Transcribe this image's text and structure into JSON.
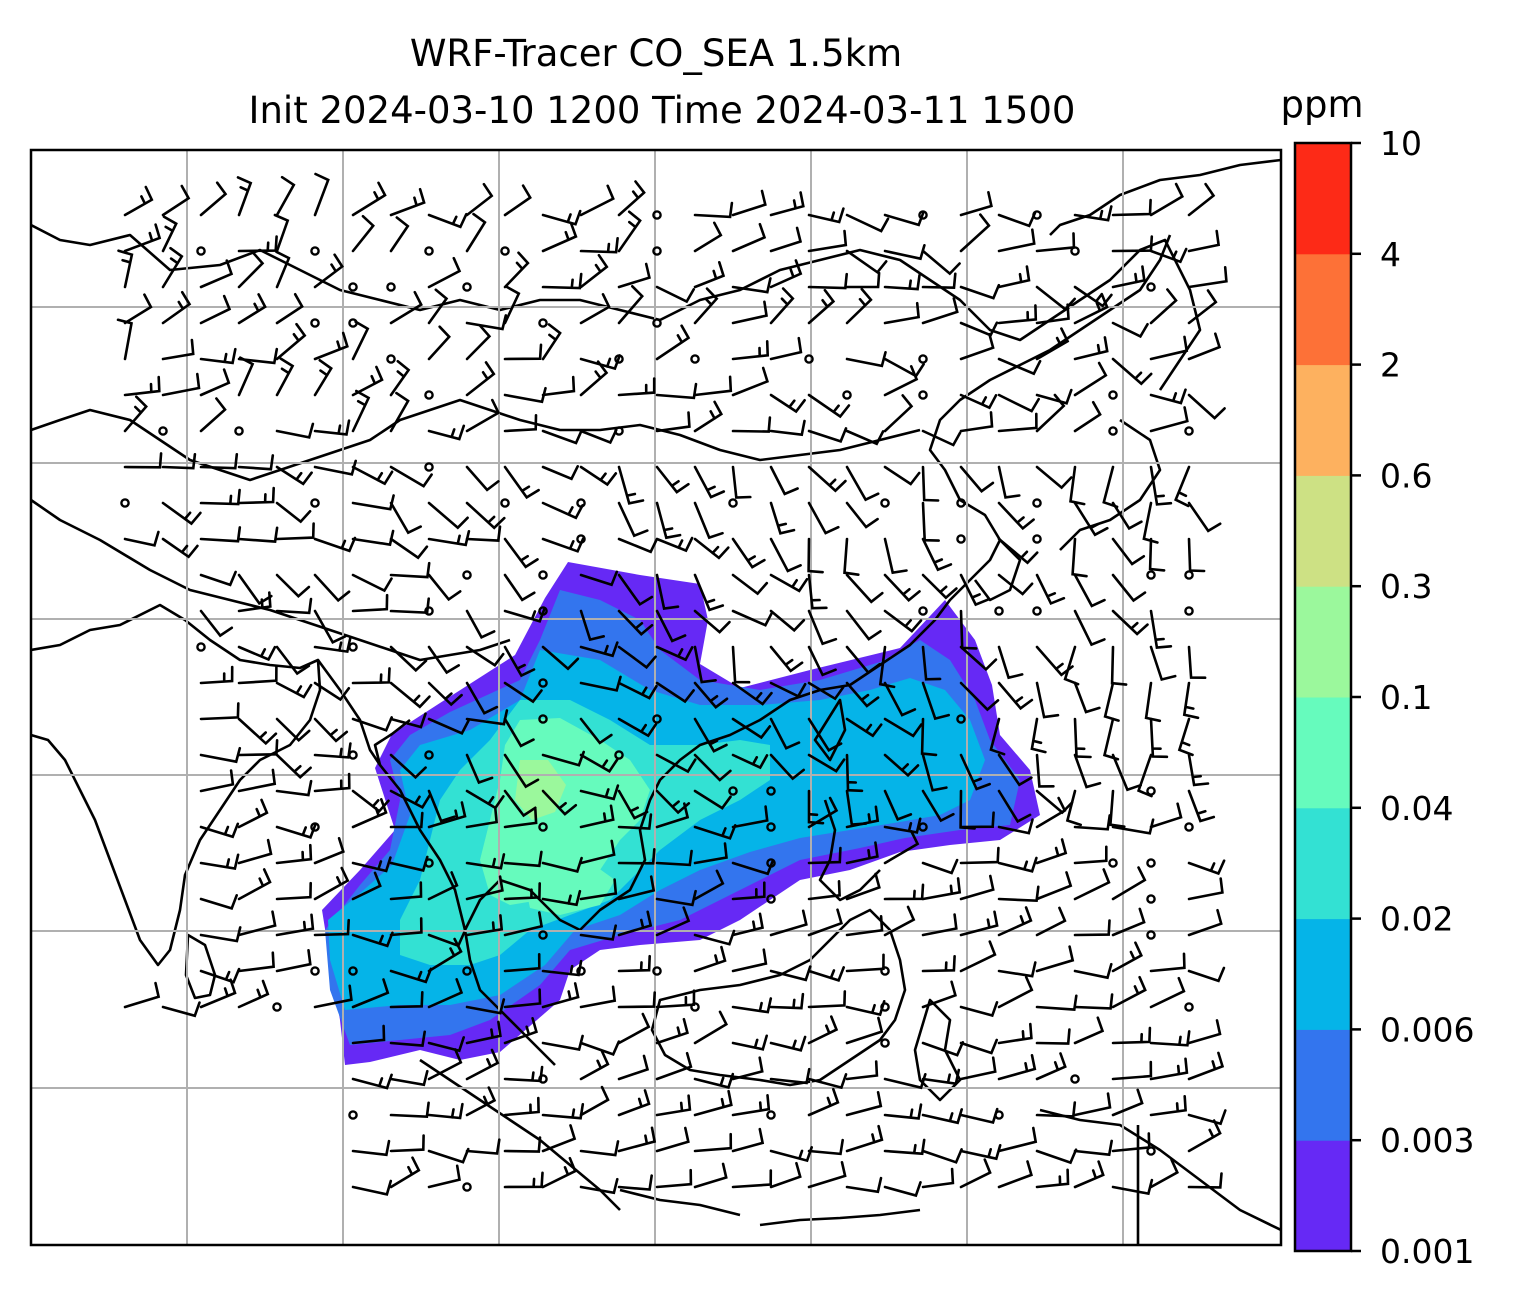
{
  "title": {
    "line1": "WRF-Tracer CO_SEA 1.5km",
    "line2": "Init 2024-03-10 1200 Time 2024-03-11 1500"
  },
  "colorbar": {
    "unit": "ppm",
    "ticks": [
      "0.001",
      "0.003",
      "0.006",
      "0.02",
      "0.04",
      "0.1",
      "0.3",
      "0.6",
      "2",
      "4",
      "10"
    ],
    "colors": [
      "#6629f5",
      "#3375ee",
      "#05b4e8",
      "#33e1d3",
      "#66fbbd",
      "#9bf89c",
      "#cde184",
      "#fdb15f",
      "#fd7137",
      "#fd2a17"
    ]
  },
  "map": {
    "gridlines": true,
    "coastline_color": "#000000",
    "grid_color": "#b0b0b0",
    "wind_barb_color": "#000000"
  }
}
